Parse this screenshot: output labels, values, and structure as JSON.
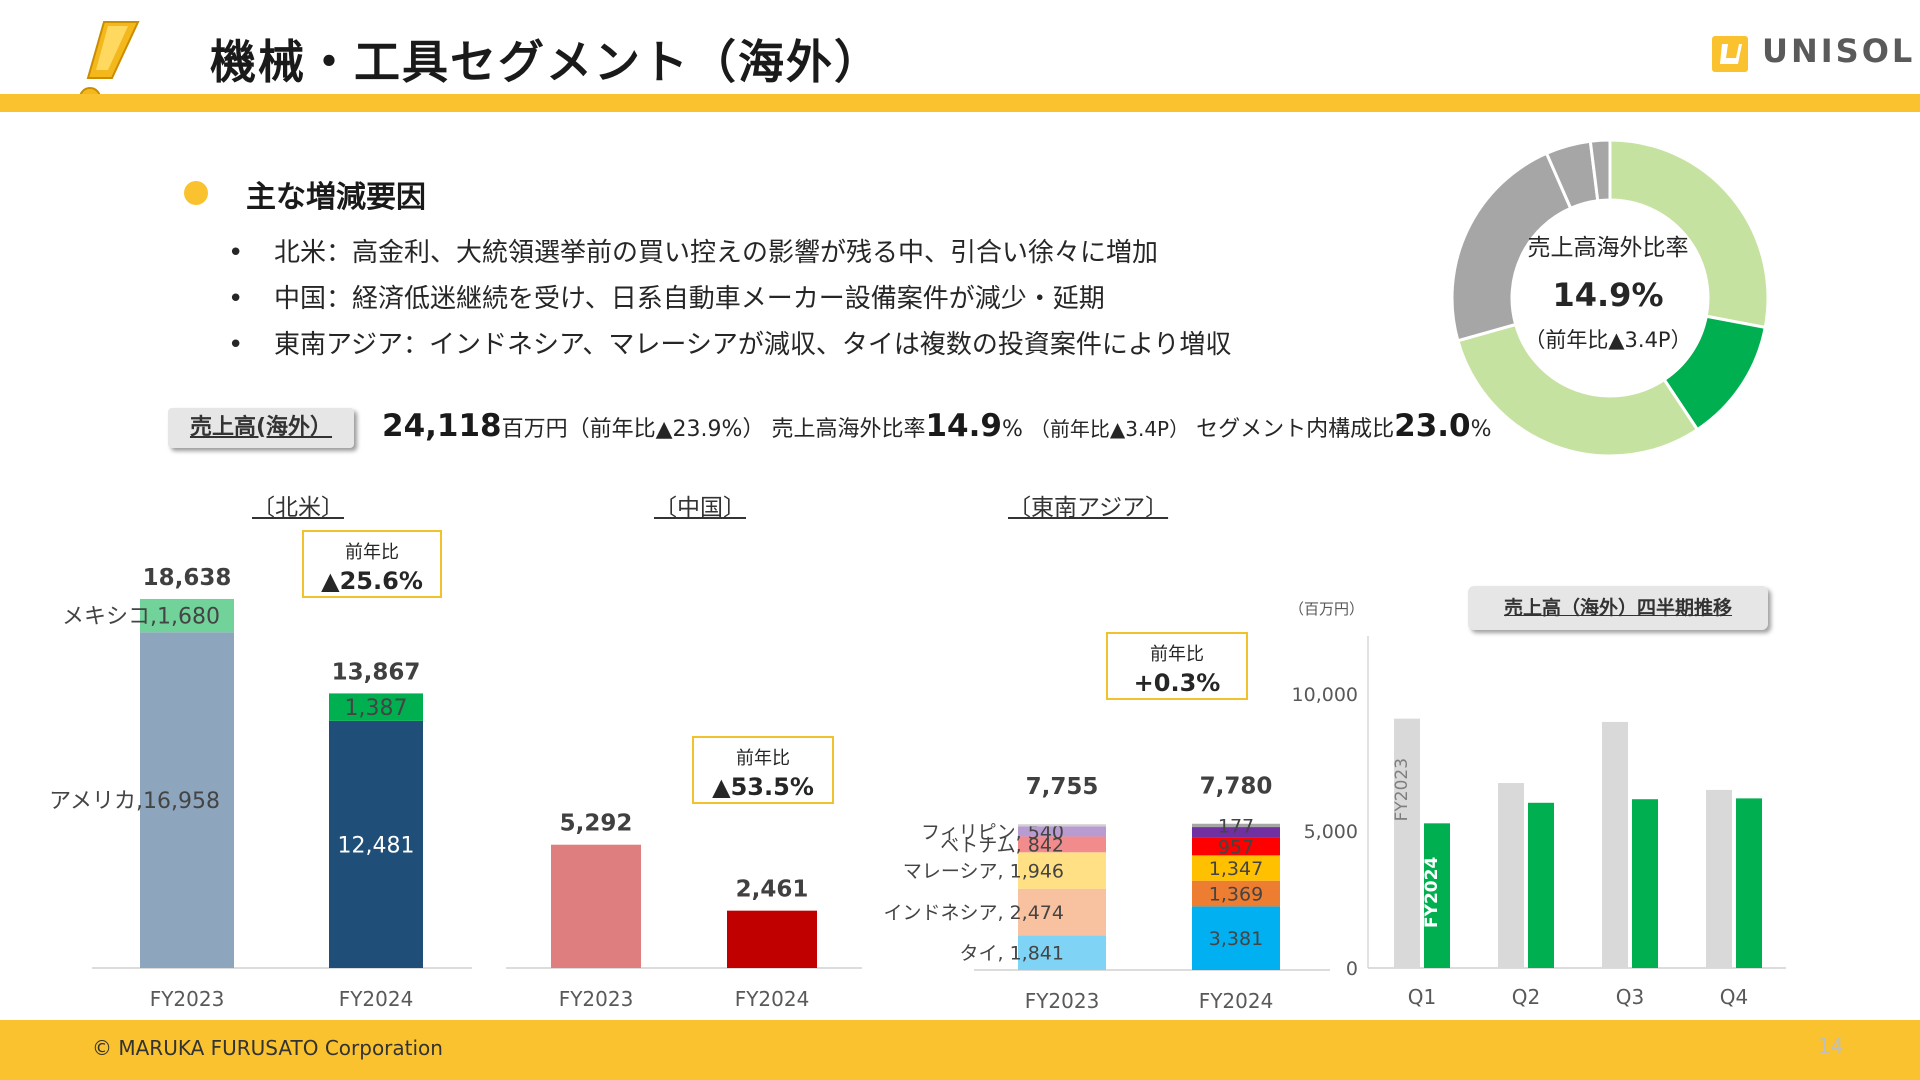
{
  "header": {
    "title": "機械・工具セグメント（海外）",
    "logo_text": "UNISOL",
    "colors": {
      "accent": "#f9c22e",
      "logo_box": "#f9c22e"
    }
  },
  "summary": {
    "heading": "主な増減要因",
    "bullet_char": "•",
    "items": [
      "北米：高金利、大統領選挙前の買い控えの影響が残る中、引合い徐々に増加",
      "中国：経済低迷継続を受け、日系自動車メーカー設備案件が減少・延期",
      "東南アジア：インドネシア、マレーシアが減収、タイは複数の投資案件により増収"
    ]
  },
  "sales": {
    "tag": "売上高(海外）",
    "amount": "24,118",
    "amount_unit": "百万円（前年比▲23.9%）",
    "ratio_label": "売上高海外比率",
    "ratio_value": "14.9",
    "ratio_unit": "%",
    "ratio_change": "（前年比▲3.4P）",
    "composition_label": "セグメント内構成比",
    "composition_value": "23.0",
    "composition_unit": "%"
  },
  "donut": {
    "label": "売上高海外比率",
    "value": "14.9%",
    "change": "（前年比▲3.4P）"
  },
  "regions": {
    "north_america": {
      "title": "〔北米〕",
      "yoy_label": "前年比",
      "yoy_value": "▲25.6%"
    },
    "china": {
      "title": "〔中国〕",
      "yoy_label": "前年比",
      "yoy_value": "▲53.5%"
    },
    "sea": {
      "title": "〔東南アジア〕",
      "yoy_label": "前年比",
      "yoy_value": "+0.3%"
    }
  },
  "quarterly": {
    "tag": "売上高（海外）四半期推移",
    "unit": "（百万円）"
  },
  "chart_data": [
    {
      "type": "bar",
      "title": "〔北米〕",
      "stacked": true,
      "categories": [
        "FY2023",
        "FY2024"
      ],
      "totals": [
        "18,638",
        "13,867"
      ],
      "series": [
        {
          "name": "アメリカ",
          "values": [
            16958,
            12481
          ],
          "labels": [
            "アメリカ,16,958",
            "12,481"
          ],
          "colors": [
            "#8ea6bd",
            "#1f4e79"
          ],
          "label_colors": [
            "#444444",
            "#ffffff"
          ]
        },
        {
          "name": "メキシコ",
          "values": [
            1680,
            1387
          ],
          "labels": [
            "メキシコ,1,680",
            "1,387"
          ],
          "colors": [
            "#72d39a",
            "#00b050"
          ],
          "label_colors": [
            "#444444",
            "#444444"
          ]
        }
      ]
    },
    {
      "type": "bar",
      "title": "〔中国〕",
      "categories": [
        "FY2023",
        "FY2024"
      ],
      "totals": [
        "5,292",
        "2,461"
      ],
      "values": [
        5292,
        2461
      ],
      "colors": [
        "#df7e7e",
        "#c00000"
      ]
    },
    {
      "type": "bar",
      "title": "〔東南アジア〕",
      "stacked": true,
      "categories": [
        "FY2023",
        "FY2024"
      ],
      "totals": [
        "7,755",
        "7,780"
      ],
      "series": [
        {
          "name": "タイ",
          "values": [
            1841,
            3381
          ],
          "labels": [
            "タイ, 1,841",
            "3,381"
          ],
          "colors": [
            "#7fd4f5",
            "#00b0f0"
          ]
        },
        {
          "name": "インドネシア",
          "values": [
            2474,
            1369
          ],
          "labels": [
            "インドネシア, 2,474",
            "1,369"
          ],
          "colors": [
            "#f8c1a0",
            "#ed7d31"
          ]
        },
        {
          "name": "マレーシア",
          "values": [
            1946,
            1347
          ],
          "labels": [
            "マレーシア, 1,946",
            "1,347"
          ],
          "colors": [
            "#ffe085",
            "#ffc000"
          ]
        },
        {
          "name": "ベトナム",
          "values": [
            842,
            957
          ],
          "labels": [
            "ベトナム, 842",
            "957"
          ],
          "colors": [
            "#f28b8b",
            "#ff0000"
          ]
        },
        {
          "name": "フィリピン",
          "values": [
            540,
            549
          ],
          "labels": [
            "フィリピン, 540",
            ""
          ],
          "colors": [
            "#b89bd1",
            "#7030a0"
          ]
        },
        {
          "name": "その他",
          "values": [
            112,
            177
          ],
          "labels": [
            "",
            "177"
          ],
          "colors": [
            "#d0d0d0",
            "#a6a6a6"
          ]
        }
      ]
    },
    {
      "type": "bar",
      "title": "売上高（海外）四半期推移",
      "ylabel": "（百万円）",
      "categories": [
        "Q1",
        "Q2",
        "Q3",
        "Q4"
      ],
      "ylim": [
        0,
        12000
      ],
      "yticks": [
        0,
        5000,
        10000
      ],
      "ytick_labels": [
        "0",
        "5,000",
        "10,000"
      ],
      "series": [
        {
          "name": "FY2023",
          "values": [
            9100,
            6750,
            8980,
            6500
          ],
          "color": "#d9d9d9"
        },
        {
          "name": "FY2024",
          "values": [
            5280,
            6030,
            6160,
            6190
          ],
          "color": "#00b050"
        }
      ]
    },
    {
      "type": "pie",
      "title": "売上高海外比率",
      "donut": true,
      "values": [
        18.3,
        8.3,
        19.6,
        14.9,
        3.0,
        1.3
      ],
      "colors": [
        "#c6e2a0",
        "#00b050",
        "#c6e2a0",
        "#a6a6a6",
        "#a6a6a6",
        "#a6a6a6"
      ]
    }
  ],
  "footer": {
    "copyright": "© MARUKA FURUSATO Corporation",
    "page_number": "14"
  }
}
